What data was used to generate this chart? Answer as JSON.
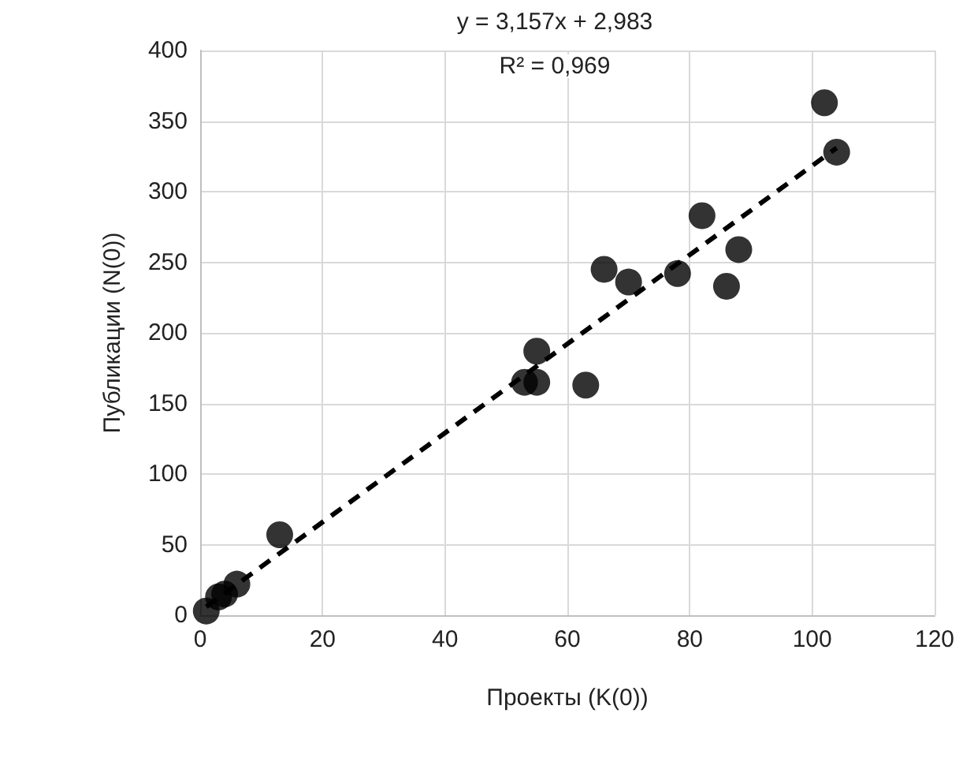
{
  "chart_data": {
    "type": "scatter",
    "xlabel": "Проекты (K(0))",
    "ylabel": "Публикации (N(0))",
    "xlim": [
      0,
      120
    ],
    "xticks": [
      0,
      20,
      40,
      60,
      80,
      100,
      120
    ],
    "ylim": [
      0,
      400
    ],
    "yticks": [
      0,
      50,
      100,
      150,
      200,
      250,
      300,
      350,
      400
    ],
    "grid": true,
    "marker": "circle",
    "annotations": [
      "y = 3,157x + 2,983",
      "R² = 0,969"
    ],
    "series": [
      {
        "type": "scatter",
        "color": "#000000",
        "x": [
          1,
          3,
          4,
          6,
          13,
          53,
          55,
          55,
          63,
          66,
          70,
          78,
          82,
          86,
          88,
          102,
          104
        ],
        "values": [
          3,
          13,
          15,
          22,
          57,
          165,
          165,
          187,
          163,
          245,
          236,
          242,
          283,
          233,
          259,
          363,
          328
        ]
      },
      {
        "type": "line",
        "color": "#000000",
        "line_style": "dashed",
        "marker": "none",
        "x": [
          1,
          104
        ],
        "values": [
          6,
          331
        ]
      }
    ]
  }
}
